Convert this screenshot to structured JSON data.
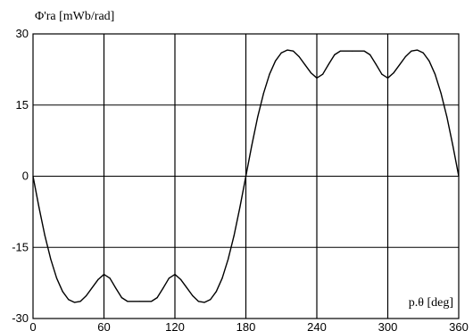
{
  "chart_data": {
    "type": "line",
    "ylabel": "Φ'ra [mWb/rad]",
    "xlabel": "p.θ [deg]",
    "xlim": [
      0,
      360
    ],
    "ylim": [
      -30,
      30
    ],
    "x_ticks": [
      "0",
      "60",
      "120",
      "180",
      "240",
      "300",
      "360"
    ],
    "y_ticks": [
      "30",
      "15",
      "0",
      "-15",
      "-30"
    ],
    "grid": true,
    "series": [
      {
        "color": "#000000",
        "x": [
          0,
          5,
          10,
          15,
          20,
          25,
          30,
          35,
          40,
          45,
          50,
          55,
          60,
          65,
          70,
          75,
          80,
          90,
          100,
          105,
          110,
          115,
          120,
          125,
          130,
          135,
          140,
          145,
          150,
          155,
          160,
          165,
          170,
          175,
          180,
          185,
          190,
          195,
          200,
          205,
          210,
          215,
          220,
          225,
          230,
          235,
          240,
          245,
          250,
          255,
          260,
          270,
          280,
          285,
          290,
          295,
          300,
          305,
          310,
          315,
          320,
          325,
          330,
          335,
          340,
          345,
          350,
          355,
          360
        ],
        "y": [
          0,
          -6.5,
          -12.5,
          -17.5,
          -21.5,
          -24.3,
          -26,
          -26.6,
          -26.4,
          -25.2,
          -23.5,
          -21.8,
          -20.7,
          -21.5,
          -23.6,
          -25.6,
          -26.4,
          -26.4,
          -26.4,
          -25.6,
          -23.6,
          -21.5,
          -20.7,
          -21.8,
          -23.5,
          -25.2,
          -26.4,
          -26.6,
          -26,
          -24.3,
          -21.5,
          -17.5,
          -12.5,
          -6.5,
          0,
          6.5,
          12.5,
          17.5,
          21.5,
          24.3,
          26,
          26.6,
          26.4,
          25.2,
          23.5,
          21.8,
          20.7,
          21.5,
          23.6,
          25.6,
          26.4,
          26.4,
          26.4,
          25.6,
          23.6,
          21.5,
          20.7,
          21.8,
          23.5,
          25.2,
          26.4,
          26.6,
          26,
          24.3,
          21.5,
          17.5,
          12.5,
          6.5,
          0
        ]
      }
    ]
  }
}
